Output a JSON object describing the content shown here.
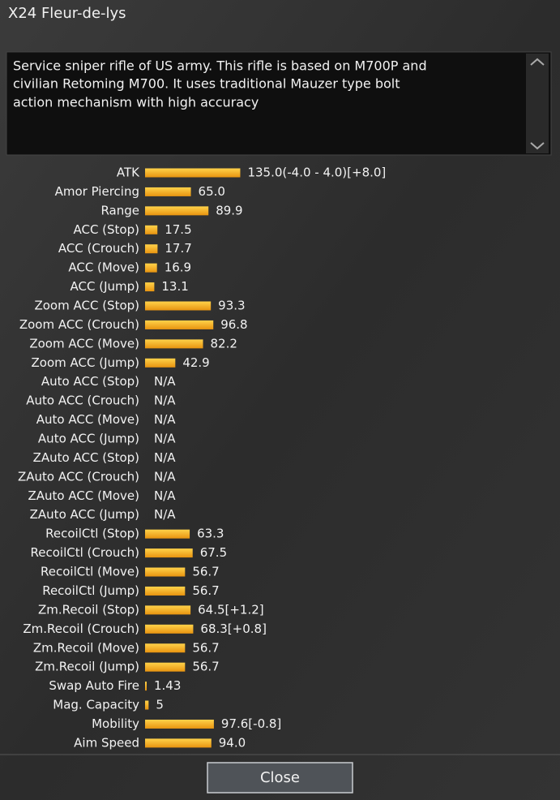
{
  "title": "X24 Fleur-de-lys",
  "description": [
    "Service sniper rifle of US army. This rifle is based on M700P and",
    "civilian Retoming  M700. It uses traditional Mauzer type bolt",
    "action mechanism with high accuracy"
  ],
  "stats": [
    {
      "label": "ATK",
      "value": 135.0,
      "value_label": "135.0(-4.0 - 4.0)[+8.0]"
    },
    {
      "label": "Amor Piercing",
      "value": 65.0,
      "value_label": "65.0"
    },
    {
      "label": "Range",
      "value": 89.9
    },
    {
      "label": "ACC (Stop)",
      "value": 17.5
    },
    {
      "label": "ACC (Crouch)",
      "value": 17.7
    },
    {
      "label": "ACC (Move)",
      "value": 16.9
    },
    {
      "label": "ACC (Jump)",
      "value": 13.1
    },
    {
      "label": "Zoom ACC (Stop)",
      "value": 93.3
    },
    {
      "label": "Zoom ACC (Crouch)",
      "value": 96.8
    },
    {
      "label": "Zoom ACC (Move)",
      "value": 82.2
    },
    {
      "label": "Zoom ACC (Jump)",
      "value": 42.9
    },
    {
      "label": "Auto ACC (Stop)",
      "value": null,
      "value_label": "N/A"
    },
    {
      "label": "Auto ACC (Crouch)",
      "value": null,
      "value_label": "N/A"
    },
    {
      "label": "Auto ACC (Move)",
      "value": null,
      "value_label": "N/A"
    },
    {
      "label": "Auto ACC (Jump)",
      "value": null,
      "value_label": "N/A"
    },
    {
      "label": "ZAuto ACC (Stop)",
      "value": null,
      "value_label": "N/A"
    },
    {
      "label": "ZAuto ACC (Crouch)",
      "value": null,
      "value_label": "N/A"
    },
    {
      "label": "ZAuto ACC (Move)",
      "value": null,
      "value_label": "N/A"
    },
    {
      "label": "ZAuto ACC (Jump)",
      "value": null,
      "value_label": "N/A"
    },
    {
      "label": "RecoilCtl (Stop)",
      "value": 63.3
    },
    {
      "label": "RecoilCtl (Crouch)",
      "value": 67.5
    },
    {
      "label": "RecoilCtl (Move)",
      "value": 56.7
    },
    {
      "label": "RecoilCtl (Jump)",
      "value": 56.7
    },
    {
      "label": "Zm.Recoil (Stop)",
      "value": 64.5,
      "value_label": "64.5[+1.2]"
    },
    {
      "label": "Zm.Recoil (Crouch)",
      "value": 68.3,
      "value_label": "68.3[+0.8]"
    },
    {
      "label": "Zm.Recoil (Move)",
      "value": 56.7
    },
    {
      "label": "Zm.Recoil (Jump)",
      "value": 56.7
    },
    {
      "label": "Swap Auto Fire",
      "value": 1.43
    },
    {
      "label": "Mag. Capacity",
      "value": 5
    },
    {
      "label": "Mobility",
      "value": 97.6,
      "value_label": "97.6[-0.8]"
    },
    {
      "label": "Aim Speed",
      "value": 94.0,
      "value_label": "94.0"
    }
  ],
  "close_button": "Close"
}
